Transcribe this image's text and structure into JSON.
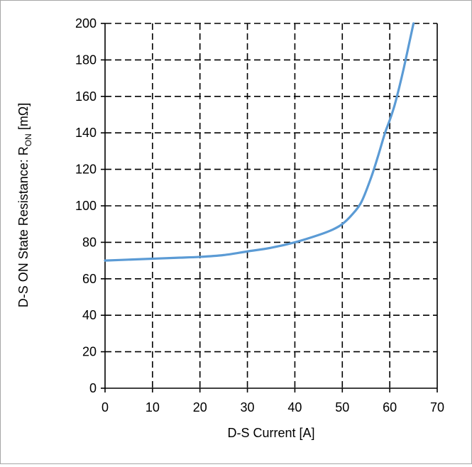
{
  "chart_data": {
    "type": "line",
    "title": "",
    "xlabel": "D-S Current [A]",
    "ylabel": {
      "prefix": "D-S ON State Resistance: R",
      "subscript": "ON",
      "suffix": " [mΩ]"
    },
    "xlim": [
      0,
      70
    ],
    "ylim": [
      0,
      200
    ],
    "x_ticks": [
      "0",
      "10",
      "20",
      "30",
      "40",
      "50",
      "60",
      "70"
    ],
    "y_ticks": [
      "0",
      "20",
      "40",
      "60",
      "80",
      "100",
      "120",
      "140",
      "160",
      "180",
      "200"
    ],
    "grid": true,
    "grid_style": "dashed",
    "legend": "none",
    "series": [
      {
        "color": "#5b9bd5",
        "x": [
          0,
          5,
          10,
          15,
          20,
          25,
          30,
          35,
          40,
          45,
          48,
          50,
          52,
          54,
          56,
          57.5,
          59,
          60,
          61,
          62,
          63,
          64,
          65
        ],
        "y": [
          70,
          70.5,
          71,
          71.5,
          72,
          73,
          75,
          77,
          80,
          84,
          87,
          90,
          95,
          102,
          115,
          127,
          140,
          147,
          155,
          165,
          176,
          188,
          200
        ]
      }
    ]
  }
}
